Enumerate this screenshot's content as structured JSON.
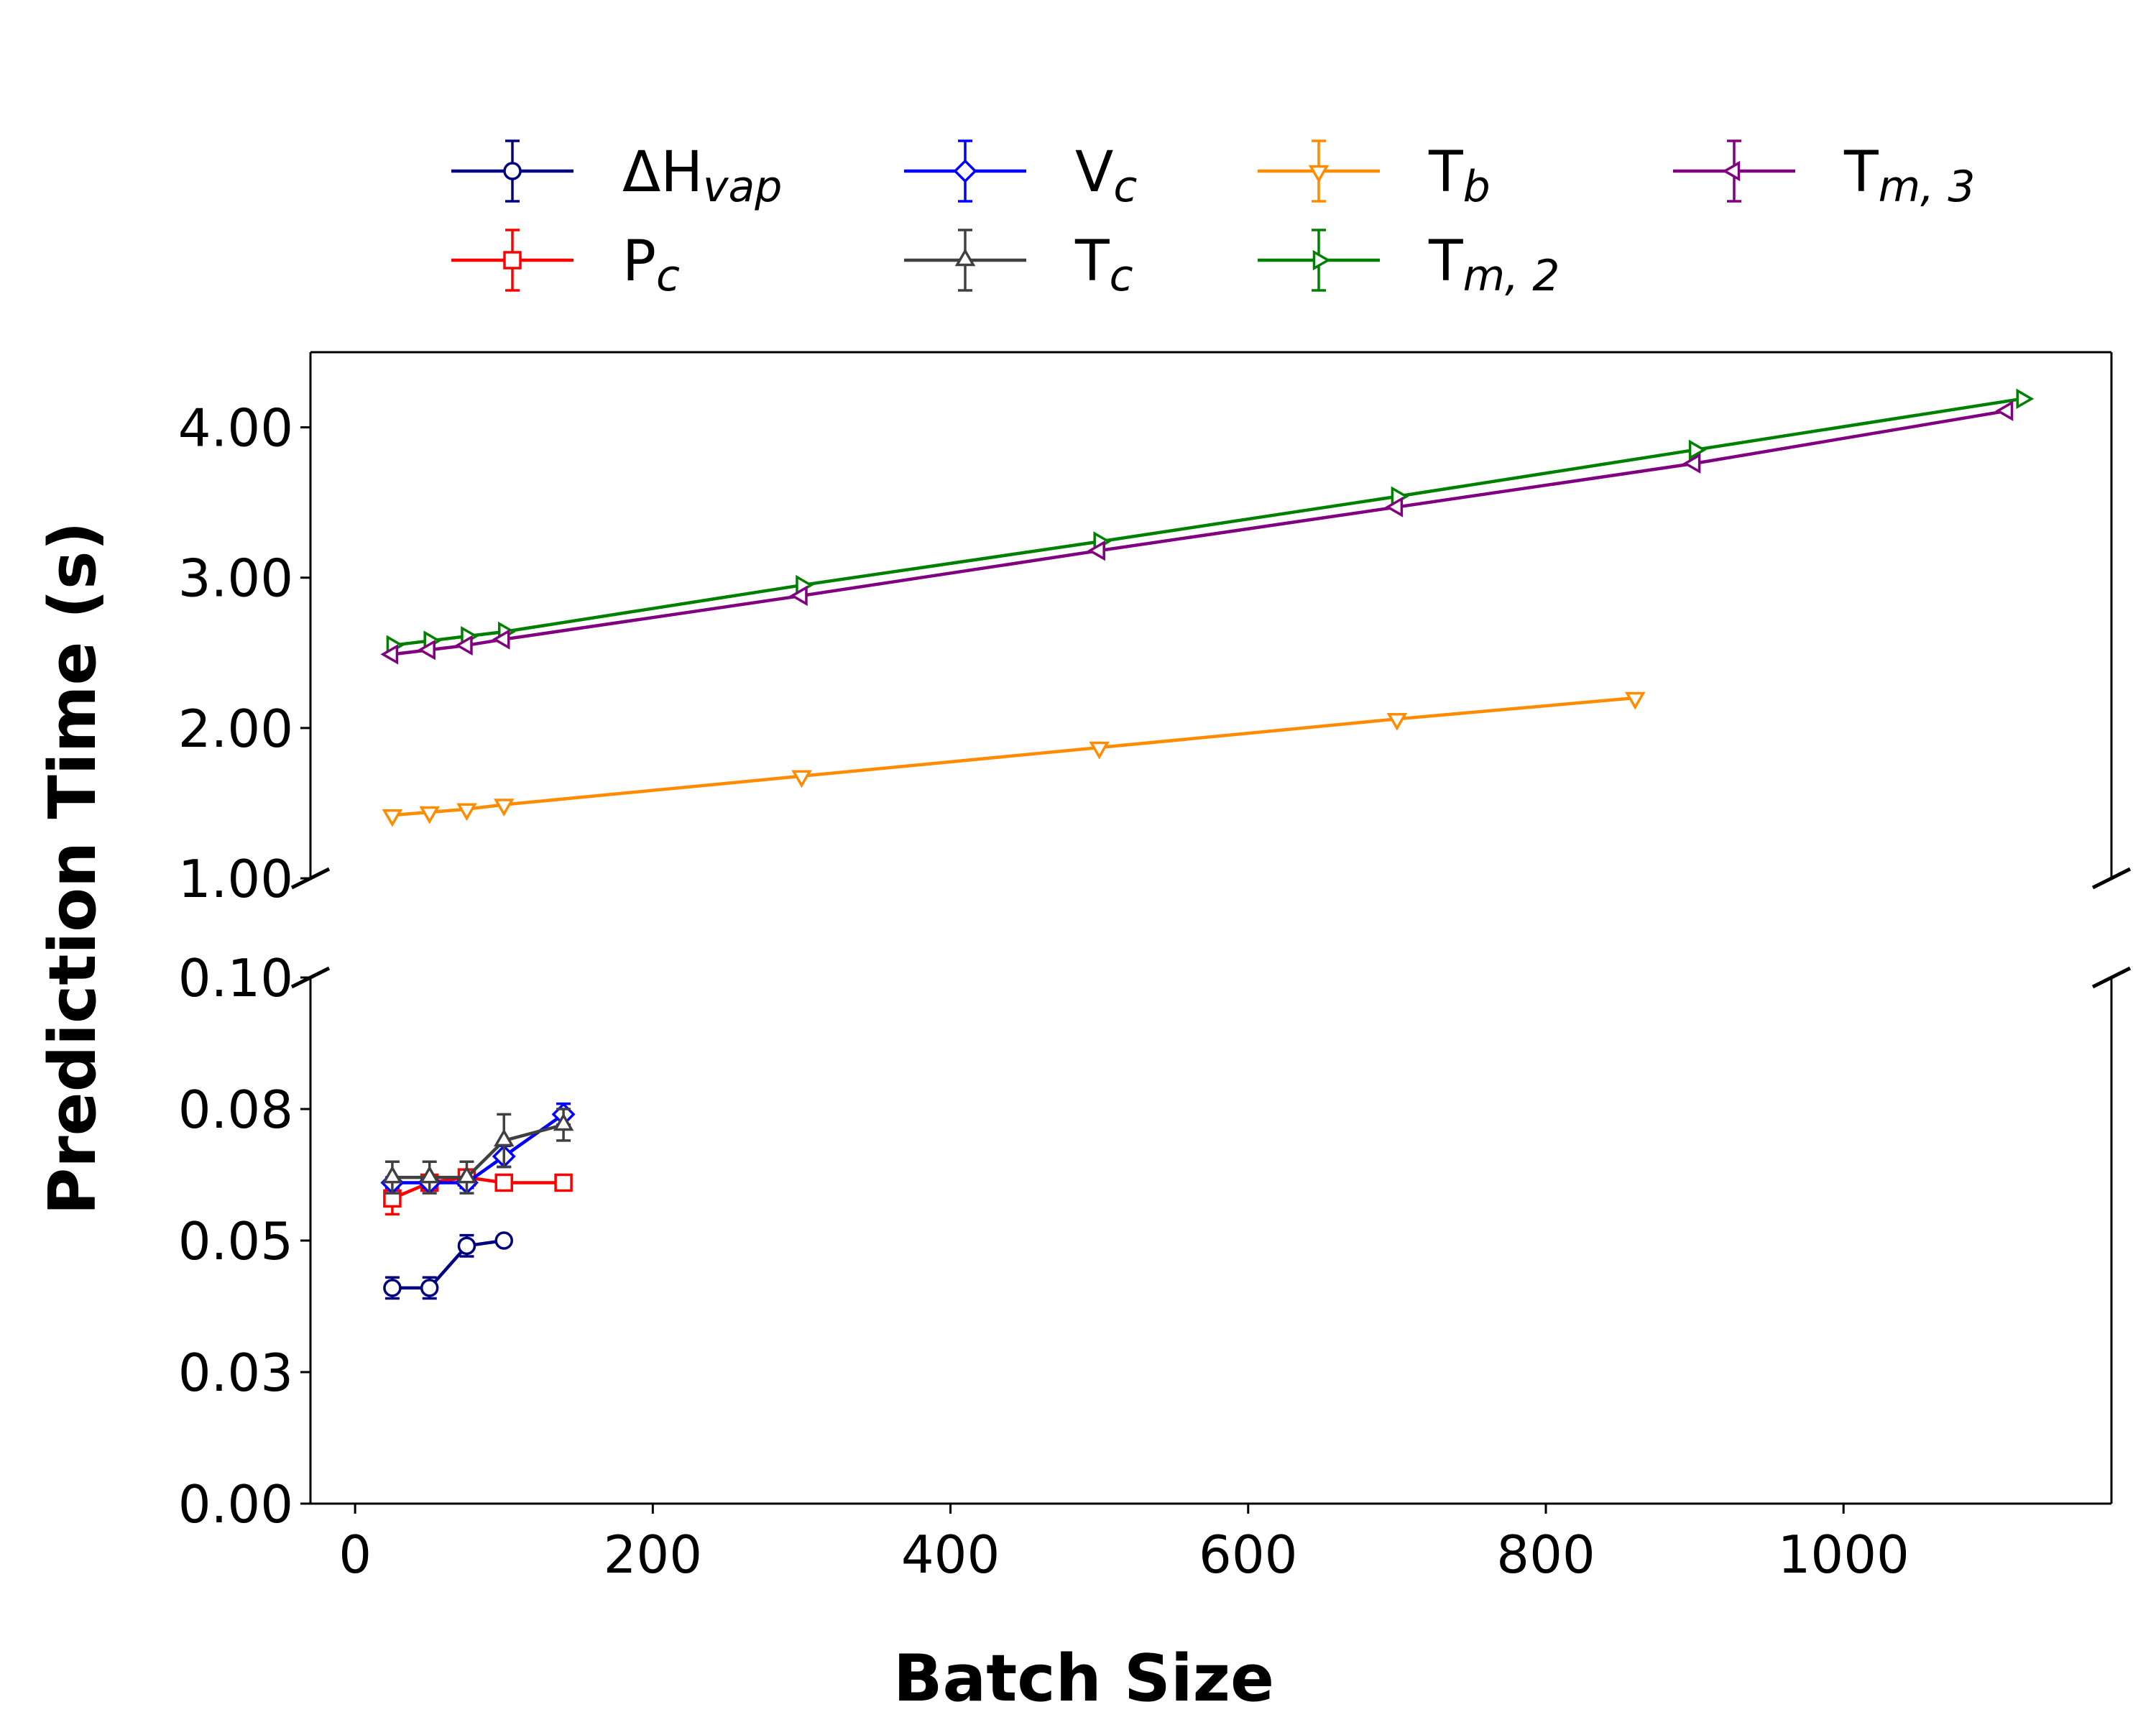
{
  "chart_data": {
    "type": "line",
    "xlabel": "Batch Size",
    "ylabel": "Prediction Time (s)",
    "xlim": [
      -30,
      1180
    ],
    "x_ticks": [
      "0",
      "200",
      "400",
      "600",
      "800",
      "1000"
    ],
    "x_tick_values": [
      0,
      200,
      400,
      600,
      800,
      1000
    ],
    "broken_y_axis": true,
    "upper_panel": {
      "ylim": [
        1.0,
        4.5
      ],
      "y_ticks": [
        "1.00",
        "2.00",
        "3.00",
        "4.00"
      ],
      "y_tick_values": [
        1.0,
        2.0,
        3.0,
        4.0
      ]
    },
    "lower_panel": {
      "ylim": [
        0.0,
        0.1
      ],
      "y_ticks": [
        "0.00",
        "0.03",
        "0.05",
        "0.08",
        "0.10"
      ],
      "y_tick_values": [
        0.0,
        0.025,
        0.05,
        0.075,
        0.1
      ]
    },
    "grid": false,
    "legend_position": "top, above plot",
    "series": [
      {
        "name": "ΔH",
        "subscript": "vap",
        "color": "#000080",
        "marker": "circle",
        "panel": "lower",
        "x": [
          25,
          50,
          75,
          100
        ],
        "y": [
          0.041,
          0.041,
          0.049,
          0.05
        ],
        "err": [
          0.002,
          0.002,
          0.002,
          0.0
        ]
      },
      {
        "name": "P",
        "subscript": "c",
        "color": "#ff0000",
        "marker": "square",
        "panel": "lower",
        "x": [
          25,
          50,
          75,
          100,
          140
        ],
        "y": [
          0.058,
          0.061,
          0.062,
          0.061,
          0.061
        ],
        "err": [
          0.003,
          0.001,
          0.001,
          0.0,
          0.0
        ]
      },
      {
        "name": "V",
        "subscript": "c",
        "color": "#0000ff",
        "marker": "diamond",
        "panel": "lower",
        "x": [
          25,
          50,
          75,
          100,
          140
        ],
        "y": [
          0.061,
          0.061,
          0.061,
          0.066,
          0.074
        ],
        "err": [
          0.001,
          0.001,
          0.001,
          0.002,
          0.002
        ]
      },
      {
        "name": "T",
        "subscript": "c",
        "color": "#404040",
        "marker": "triangle-up",
        "panel": "lower",
        "x": [
          25,
          50,
          75,
          100,
          140
        ],
        "y": [
          0.062,
          0.062,
          0.062,
          0.069,
          0.072
        ],
        "err": [
          0.003,
          0.003,
          0.003,
          0.005,
          0.003
        ]
      },
      {
        "name": "T",
        "subscript": "b",
        "color": "#ff8c00",
        "marker": "triangle-down",
        "panel": "upper",
        "x": [
          25,
          50,
          75,
          100,
          300,
          500,
          700,
          860
        ],
        "y": [
          1.42,
          1.44,
          1.46,
          1.49,
          1.68,
          1.87,
          2.06,
          2.2
        ],
        "err": [
          0,
          0,
          0,
          0,
          0,
          0,
          0,
          0
        ]
      },
      {
        "name": "T",
        "subscript": "m, 2",
        "color": "#008000",
        "marker": "triangle-right",
        "panel": "upper",
        "x": [
          25,
          50,
          75,
          100,
          300,
          500,
          700,
          900,
          1120
        ],
        "y": [
          2.55,
          2.58,
          2.61,
          2.64,
          2.95,
          3.24,
          3.54,
          3.85,
          4.19
        ],
        "err": [
          0,
          0,
          0,
          0,
          0,
          0,
          0,
          0,
          0
        ]
      },
      {
        "name": "T",
        "subscript": "m, 3",
        "color": "#800080",
        "marker": "triangle-left",
        "panel": "upper",
        "x": [
          25,
          50,
          75,
          100,
          300,
          500,
          700,
          900,
          1110
        ],
        "y": [
          2.49,
          2.52,
          2.55,
          2.59,
          2.88,
          3.18,
          3.47,
          3.76,
          4.11
        ],
        "err": [
          0,
          0,
          0,
          0,
          0,
          0,
          0,
          0,
          0
        ]
      }
    ],
    "legend_order": [
      0,
      2,
      4,
      6,
      1,
      3,
      5
    ]
  }
}
